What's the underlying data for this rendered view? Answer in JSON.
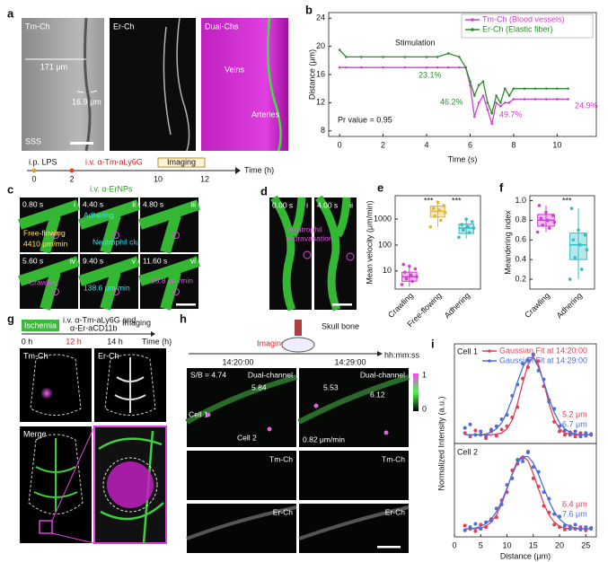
{
  "figure": {
    "panel_labels": [
      "a",
      "b",
      "c",
      "d",
      "e",
      "f",
      "g",
      "h",
      "i"
    ],
    "a": {
      "channels": [
        "Tm-Ch",
        "Er-Ch",
        "Dual-Chs"
      ],
      "scale_1": "171 μm",
      "scale_2": "16.9 μm",
      "sinus": "SSS",
      "veins": "Veins",
      "arteries": "Arteries"
    },
    "c": {
      "timeline": {
        "lps": "i.p. LPS",
        "antibody": "i.v. α-Tm-aLy6G",
        "imaging": "Imaging",
        "probe": "i.v. α-ErNPs",
        "ticks": [
          "0",
          "2",
          "10",
          "12"
        ],
        "unit": "Time (h)"
      },
      "tiles": [
        {
          "time": "0.80 s",
          "index": "i",
          "labels": [
            "Free-flowing",
            "4410 μm/min"
          ]
        },
        {
          "time": "4.40 s",
          "index": "ii",
          "labels": [
            "Adhering",
            "Neutrophil cluster"
          ]
        },
        {
          "time": "4.80 s",
          "index": "iii"
        },
        {
          "time": "5.60 s",
          "index": "iv",
          "labels": [
            "Crawling"
          ]
        },
        {
          "time": "9.40 s",
          "index": "v",
          "labels": [
            "138.6 μm/min"
          ]
        },
        {
          "time": "11.60 s",
          "index": "vi",
          "labels": [
            "10.8 μm/min"
          ]
        }
      ]
    },
    "d": {
      "tiles": [
        {
          "time": "0.00 s",
          "index": "i",
          "labels": [
            "Neutrophil",
            "extravasation"
          ]
        },
        {
          "time": "4.00 s",
          "index": "ii"
        }
      ]
    },
    "g": {
      "timeline": {
        "ischemia": "Ischemia",
        "injection": [
          "i.v. α-Tm-aLy6G and",
          "α-Er-aCD11b"
        ],
        "imaging": "Imaging",
        "ticks": [
          "0 h",
          "12 h",
          "14 h"
        ],
        "unit": "Time (h)"
      },
      "tiles": [
        "Tm-Ch",
        "Er-Ch",
        "Merge"
      ]
    },
    "h": {
      "skull": "Skull bone",
      "imaging": "Imaging",
      "times": [
        "14:20:00",
        "14:29:00"
      ],
      "unit": "hh:mm:ss",
      "sb": "S/B = 4.74",
      "dual": "Dual-channel",
      "sb_cell2": "5.84",
      "cell1": "Cell 1",
      "cell2": "Cell 2",
      "sb_b1": "5.53",
      "sb_b2": "6.12",
      "speed": "0.82 μm/min",
      "channels": [
        "Tm-Ch",
        "Er-Ch"
      ],
      "colorbar": [
        "1",
        "0"
      ]
    }
  },
  "chart_data": [
    {
      "type": "line",
      "xlabel": "Time (s)",
      "ylabel": "Distance (μm)",
      "x": [
        0,
        0.3,
        1,
        2,
        3,
        4,
        4.5,
        5,
        5.5,
        5.8,
        6,
        6.2,
        6.4,
        6.6,
        6.8,
        7,
        7.2,
        7.4,
        7.6,
        7.8,
        8,
        8.5,
        9,
        9.5,
        10,
        10.5
      ],
      "series": [
        {
          "name": "Tm-Ch (Blood vessels)",
          "color": "#d23fd2",
          "values": [
            17,
            17,
            17,
            17,
            17,
            17,
            17,
            17,
            17,
            17,
            14.5,
            10,
            12,
            13,
            11,
            9,
            12,
            11.5,
            12,
            12,
            12.5,
            12.5,
            12.5,
            12.5,
            12.5,
            12.5
          ]
        },
        {
          "name": "Er-Ch (Elastic fiber)",
          "color": "#2e8b2e",
          "values": [
            19.5,
            18.5,
            18.5,
            18.5,
            18.5,
            18.5,
            18.5,
            19,
            18.5,
            17,
            15,
            13,
            14.5,
            15,
            12,
            10.5,
            13,
            12,
            14,
            13,
            14,
            14,
            14,
            14,
            14,
            14
          ]
        }
      ],
      "xlim": [
        -0.5,
        11.8
      ],
      "ylim": [
        7.2,
        24.8
      ],
      "xticks": [
        0,
        2,
        4,
        6,
        8,
        10
      ],
      "yticks": [
        8,
        12,
        16,
        20,
        24
      ],
      "legend": "upper right",
      "markers": true,
      "annotations": [
        {
          "text": "Stimulation"
        },
        {
          "text": "23.1%",
          "color": "#2e8b2e"
        },
        {
          "text": "46.2%",
          "color": "#2e8b2e"
        },
        {
          "text": "49.7%",
          "color": "#d23fd2"
        },
        {
          "text": "24.9%",
          "color": "#d23fd2"
        },
        {
          "text": "Pr value = 0.95"
        }
      ]
    },
    {
      "type": "box",
      "ylabel": "Mean velocity (μm/min)",
      "log": true,
      "ylim": [
        2,
        8000
      ],
      "yticks": [
        10,
        100,
        1000
      ],
      "categories": [
        "Crawling",
        "Free-flowing",
        "Adhering"
      ],
      "colors": [
        "#d23fd2",
        "#e8b820",
        "#30c0c8"
      ],
      "boxes": [
        {
          "min": 2.5,
          "q1": 4,
          "median": 6,
          "q3": 9,
          "max": 18
        },
        {
          "min": 500,
          "q1": 1200,
          "median": 2000,
          "q3": 3200,
          "max": 5000
        },
        {
          "min": 180,
          "q1": 280,
          "median": 450,
          "q3": 650,
          "max": 1000
        }
      ],
      "points": [
        [
          3,
          4,
          5,
          6,
          7,
          9,
          12,
          15,
          18
        ],
        [
          500,
          900,
          1300,
          1800,
          2200,
          2600,
          3300,
          4500
        ],
        [
          200,
          300,
          380,
          450,
          520,
          620,
          800,
          1000
        ]
      ],
      "annotations": [
        {
          "text": "***"
        },
        {
          "text": "***"
        }
      ]
    },
    {
      "type": "box",
      "ylabel": "Meandering index",
      "ylim": [
        0.1,
        1.05
      ],
      "yticks": [
        0.2,
        0.4,
        0.6,
        0.8,
        {
          "value": 1,
          "label": "1.0"
        }
      ],
      "categories": [
        "Crawling",
        "Adhering"
      ],
      "colors": [
        "#d23fd2",
        "#30c0c8"
      ],
      "boxes": [
        {
          "min": 0.68,
          "q1": 0.74,
          "median": 0.8,
          "q3": 0.86,
          "max": 0.95
        },
        {
          "min": 0.2,
          "q1": 0.4,
          "median": 0.55,
          "q3": 0.67,
          "max": 0.92
        }
      ],
      "points": [
        [
          0.68,
          0.72,
          0.75,
          0.78,
          0.8,
          0.82,
          0.85,
          0.88,
          0.95
        ],
        [
          0.2,
          0.3,
          0.42,
          0.5,
          0.55,
          0.6,
          0.65,
          0.7,
          0.92
        ]
      ],
      "annotations": [
        {
          "text": "***"
        }
      ]
    },
    {
      "type": "line",
      "title": "Cell 1",
      "ylabel": "Normalized Intensity (a.u.)",
      "legend": "upper left",
      "x": [
        2,
        3,
        4,
        5,
        6,
        7,
        8,
        9,
        10,
        11,
        12,
        13,
        14,
        15,
        16,
        17,
        18,
        19,
        20,
        21,
        22,
        23,
        24,
        25,
        26
      ],
      "xlim": [
        0,
        27
      ],
      "ylim": [
        0,
        1.15
      ],
      "series": [
        {
          "name": "Gaussian Fit at 14:20:00",
          "color": "#e0405a",
          "values": [
            0.12,
            0.08,
            0.15,
            0.1,
            0.06,
            0.14,
            0.09,
            0.16,
            0.2,
            0.3,
            0.42,
            0.75,
            0.88,
            1.02,
            0.95,
            0.66,
            0.5,
            0.25,
            0.14,
            0.1,
            0.13,
            0.08,
            0.12,
            0.09,
            0.11
          ],
          "fit": [
            0.1,
            0.1,
            0.1,
            0.1,
            0.1,
            0.1,
            0.11,
            0.12,
            0.17,
            0.27,
            0.46,
            0.7,
            0.91,
            1.0,
            0.91,
            0.7,
            0.46,
            0.27,
            0.17,
            0.12,
            0.11,
            0.1,
            0.1,
            0.1,
            0.1
          ]
        },
        {
          "name": "Gaussian Fit at 14:29:00",
          "color": "#4a6fd8",
          "values": [
            0.18,
            0.22,
            0.1,
            0.14,
            0.08,
            0.16,
            0.2,
            0.28,
            0.33,
            0.55,
            0.68,
            0.92,
            0.96,
            1.03,
            0.84,
            0.74,
            0.48,
            0.4,
            0.2,
            0.15,
            0.1,
            0.14,
            0.08,
            0.12,
            0.1
          ],
          "fit": [
            0.1,
            0.1,
            0.1,
            0.1,
            0.11,
            0.13,
            0.17,
            0.24,
            0.36,
            0.52,
            0.71,
            0.88,
            0.99,
            0.99,
            0.88,
            0.71,
            0.52,
            0.36,
            0.24,
            0.17,
            0.13,
            0.11,
            0.1,
            0.1,
            0.1
          ]
        }
      ],
      "annotations": [
        {
          "text": "5.2 μm",
          "color": "#e0405a"
        },
        {
          "text": "6.7 μm",
          "color": "#4a6fd8"
        }
      ]
    },
    {
      "type": "line",
      "title": "Cell 2",
      "xlabel": "Distance (μm)",
      "x": [
        2,
        3,
        4,
        5,
        6,
        7,
        8,
        9,
        10,
        11,
        12,
        13,
        14,
        15,
        16,
        17,
        18,
        19,
        20,
        21,
        22,
        23,
        24,
        25,
        26
      ],
      "xlim": [
        0,
        27
      ],
      "ylim": [
        0,
        1.15
      ],
      "xticks": [
        0,
        5,
        10,
        15,
        20,
        25
      ],
      "series": [
        {
          "color": "#e0405a",
          "values": [
            0.14,
            0.1,
            0.07,
            0.15,
            0.12,
            0.22,
            0.24,
            0.45,
            0.55,
            0.82,
            0.9,
            0.97,
            1.05,
            0.72,
            0.62,
            0.38,
            0.3,
            0.15,
            0.12,
            0.09,
            0.13,
            0.1,
            0.12,
            0.08,
            0.11
          ],
          "fit": [
            0.1,
            0.1,
            0.1,
            0.11,
            0.13,
            0.18,
            0.27,
            0.41,
            0.59,
            0.78,
            0.94,
            1.0,
            0.94,
            0.78,
            0.59,
            0.41,
            0.27,
            0.18,
            0.13,
            0.11,
            0.1,
            0.1,
            0.1,
            0.1,
            0.1
          ]
        },
        {
          "color": "#4a6fd8",
          "values": [
            0.08,
            0.12,
            0.16,
            0.1,
            0.18,
            0.2,
            0.35,
            0.4,
            0.64,
            0.72,
            0.95,
            0.93,
            1.04,
            0.86,
            0.8,
            0.55,
            0.47,
            0.28,
            0.25,
            0.14,
            0.1,
            0.15,
            0.09,
            0.12,
            0.1
          ],
          "fit": [
            0.1,
            0.1,
            0.11,
            0.13,
            0.16,
            0.22,
            0.31,
            0.44,
            0.6,
            0.77,
            0.91,
            0.99,
            0.99,
            0.91,
            0.77,
            0.6,
            0.44,
            0.31,
            0.22,
            0.16,
            0.13,
            0.11,
            0.1,
            0.1,
            0.1
          ]
        }
      ],
      "annotations": [
        {
          "text": "6.4 μm",
          "color": "#e0405a"
        },
        {
          "text": "7.6 μm",
          "color": "#4a6fd8"
        }
      ]
    }
  ]
}
